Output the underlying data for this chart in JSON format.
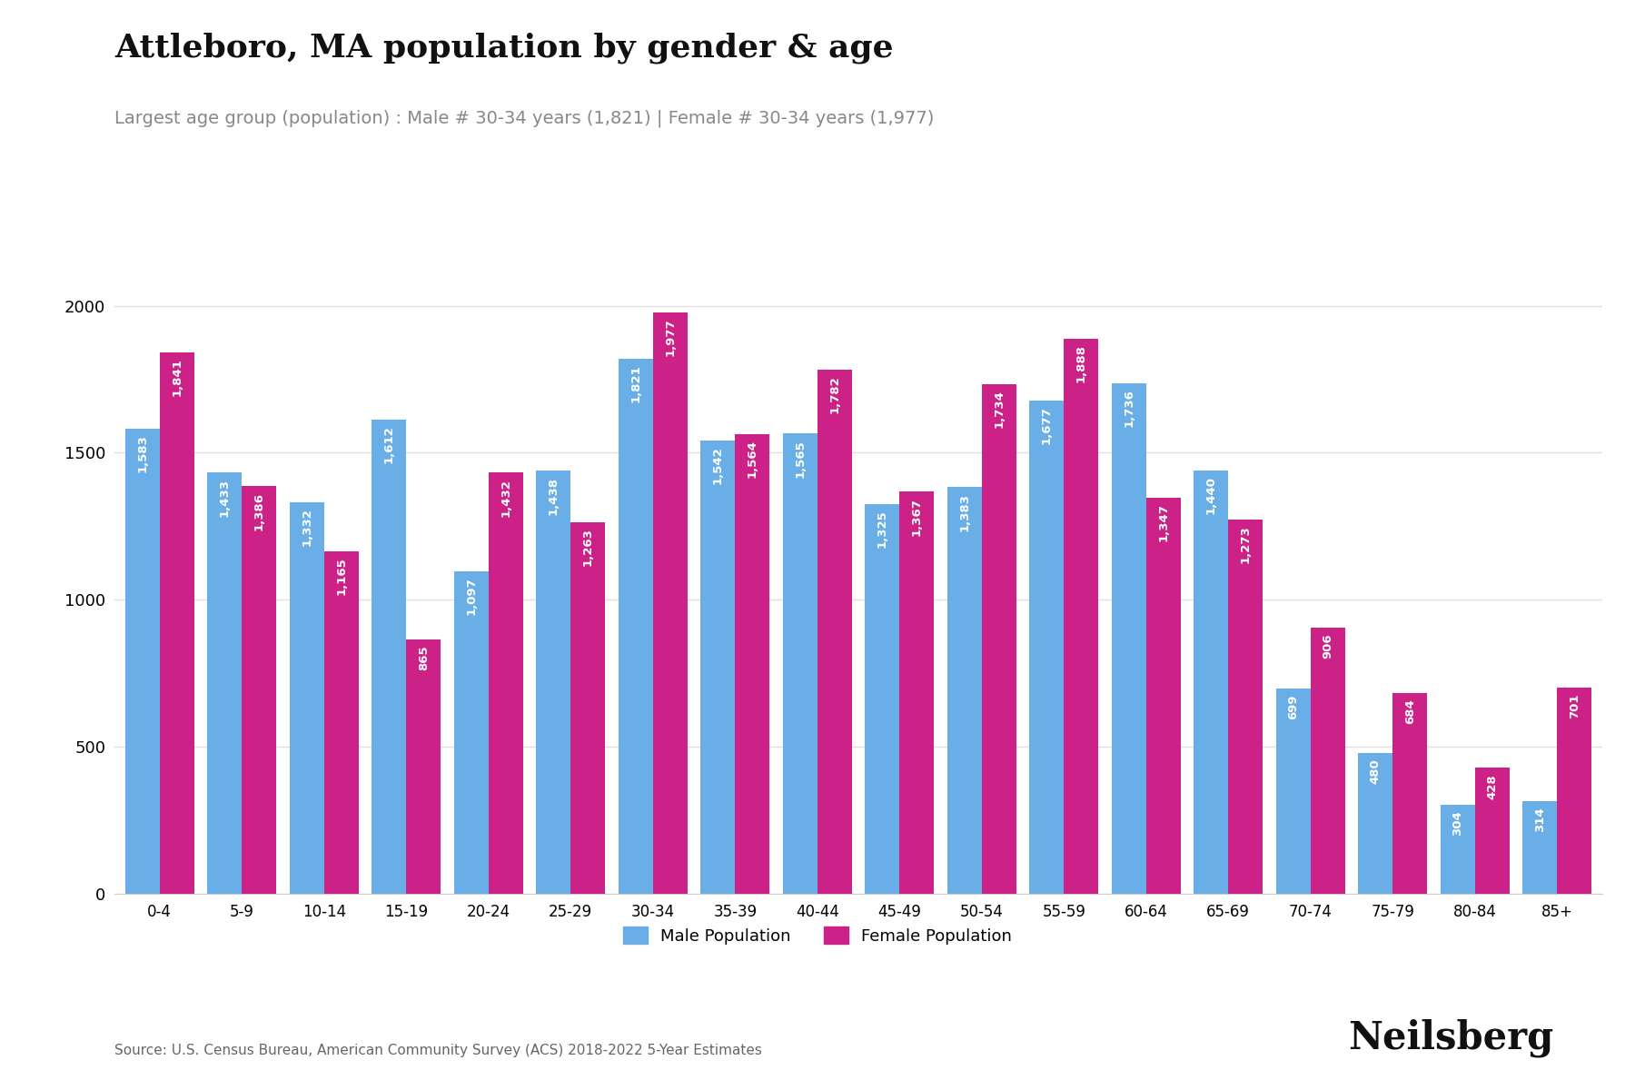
{
  "title": "Attleboro, MA population by gender & age",
  "subtitle": "Largest age group (population) : Male # 30-34 years (1,821) | Female # 30-34 years (1,977)",
  "age_groups": [
    "0-4",
    "5-9",
    "10-14",
    "15-19",
    "20-24",
    "25-29",
    "30-34",
    "35-39",
    "40-44",
    "45-49",
    "50-54",
    "55-59",
    "60-64",
    "65-69",
    "70-74",
    "75-79",
    "80-84",
    "85+"
  ],
  "male_population": [
    1583,
    1433,
    1332,
    1612,
    1097,
    1438,
    1821,
    1542,
    1565,
    1325,
    1383,
    1677,
    1736,
    1440,
    699,
    480,
    304,
    314
  ],
  "female_population": [
    1841,
    1386,
    1165,
    865,
    1432,
    1263,
    1977,
    1564,
    1782,
    1367,
    1734,
    1888,
    1347,
    1273,
    906,
    684,
    428,
    701
  ],
  "male_color": "#6aaee8",
  "female_color": "#cc2288",
  "bar_label_color": "#ffffff",
  "title_fontsize": 26,
  "subtitle_fontsize": 14,
  "ylim": [
    0,
    2150
  ],
  "yticks": [
    0,
    500,
    1000,
    1500,
    2000
  ],
  "source_text": "Source: U.S. Census Bureau, American Community Survey (ACS) 2018-2022 5-Year Estimates",
  "brand_text": "Neilsberg",
  "background_color": "#ffffff",
  "grid_color": "#e0e0e0"
}
